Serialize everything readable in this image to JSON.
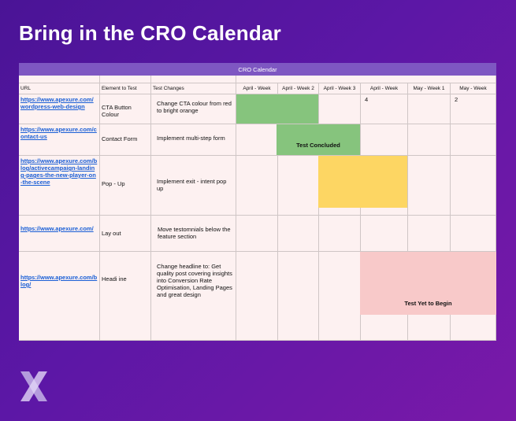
{
  "headline": "Bring in the CRO Calendar",
  "calendar_title": "CRO Calendar",
  "headers": {
    "url": "URL",
    "element": "Element to Test",
    "changes": "Test Changes",
    "weeks": [
      "April - Week",
      "April - Week 2",
      "April - Week 3",
      "April - Week",
      "May - Week 1",
      "May - Week"
    ],
    "week_suffix": [
      "",
      "",
      "",
      "4",
      "",
      "2"
    ]
  },
  "rows": [
    {
      "url": "https://www.apexure.com/wordpress-web-design",
      "element": "CTA Button Colour",
      "changes": "Change CTA colour from red to bright orange"
    },
    {
      "url": "https://www.apexure.com/contact-us",
      "element": "Contact Form",
      "changes": "Implement multi-step form"
    },
    {
      "url": "https://www.apexure.com/blog/activecampaign-landing-pages-the-new-player-on-the-scene",
      "element": "Pop - Up",
      "changes": "Implement exit - intent pop up"
    },
    {
      "url": "https://www.apexure.com/",
      "element": "Lay out",
      "changes": "Move testomnials below the feature section"
    },
    {
      "url": "https://www.apexure.com/blog/",
      "element": "Headi ine",
      "changes": "Change headline to: Get quality post covering insights into Conversion Rate Optimisation, Landing Pages and great design"
    }
  ],
  "status_labels": {
    "concluded": "Test Concluded",
    "yet_to_begin": "Test Yet to Begin"
  },
  "colors": {
    "green": "#86c47d",
    "yellow": "#fdd663",
    "pink": "#f8c9c9",
    "header_bar": "#7e57c2",
    "link": "#1a5fd6"
  },
  "logo_icon": "x-logo-icon"
}
